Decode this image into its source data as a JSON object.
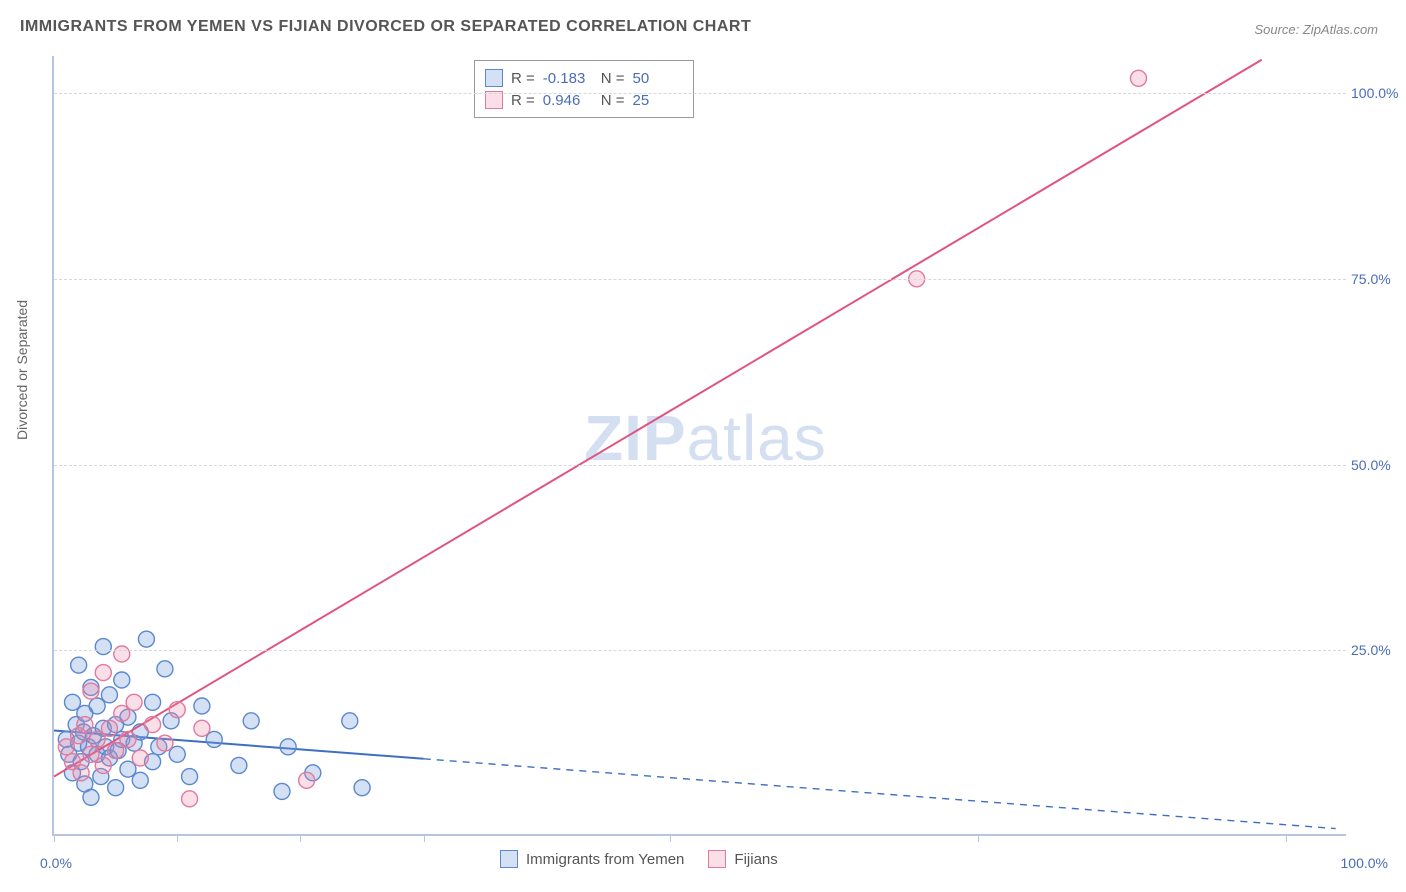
{
  "title": "IMMIGRANTS FROM YEMEN VS FIJIAN DIVORCED OR SEPARATED CORRELATION CHART",
  "source": "Source: ZipAtlas.com",
  "ylabel": "Divorced or Separated",
  "watermark": {
    "bold": "ZIP",
    "light": "atlas"
  },
  "chart": {
    "type": "scatter",
    "xlim": [
      0,
      105
    ],
    "ylim": [
      0,
      105
    ],
    "yticks": [
      25,
      50,
      75,
      100
    ],
    "ytick_labels": [
      "25.0%",
      "50.0%",
      "75.0%",
      "100.0%"
    ],
    "xticks": [
      0,
      10,
      20,
      30,
      50,
      75,
      100
    ],
    "x_axis_labels": {
      "left": "0.0%",
      "right": "100.0%"
    },
    "grid_color": "#d8d8d8",
    "axis_color": "#b8c4e0",
    "background_color": "#ffffff",
    "marker_radius": 8,
    "marker_stroke_width": 1.4,
    "series": [
      {
        "name": "Immigrants from Yemen",
        "fill": "rgba(122,160,220,0.32)",
        "stroke": "#5b88cf",
        "R": "-0.183",
        "N": "50",
        "trend": {
          "x1": 0,
          "y1": 14.2,
          "x2": 104,
          "y2": 1.0,
          "solid_until_x": 30,
          "color": "#3e6fc0",
          "width": 2
        },
        "points": [
          [
            1.0,
            13.0
          ],
          [
            1.2,
            11.0
          ],
          [
            1.5,
            18.0
          ],
          [
            1.5,
            8.5
          ],
          [
            1.8,
            15.0
          ],
          [
            2.0,
            12.5
          ],
          [
            2.0,
            23.0
          ],
          [
            2.2,
            10.0
          ],
          [
            2.4,
            14.0
          ],
          [
            2.5,
            7.0
          ],
          [
            2.5,
            16.5
          ],
          [
            2.8,
            12.0
          ],
          [
            3.0,
            20.0
          ],
          [
            3.0,
            5.2
          ],
          [
            3.2,
            13.5
          ],
          [
            3.5,
            11.0
          ],
          [
            3.5,
            17.5
          ],
          [
            3.8,
            8.0
          ],
          [
            4.0,
            14.5
          ],
          [
            4.0,
            25.5
          ],
          [
            4.2,
            12.0
          ],
          [
            4.5,
            10.5
          ],
          [
            4.5,
            19.0
          ],
          [
            5.0,
            6.5
          ],
          [
            5.0,
            15.0
          ],
          [
            5.2,
            11.5
          ],
          [
            5.5,
            13.0
          ],
          [
            5.5,
            21.0
          ],
          [
            6.0,
            9.0
          ],
          [
            6.0,
            16.0
          ],
          [
            6.5,
            12.5
          ],
          [
            7.0,
            7.5
          ],
          [
            7.0,
            14.0
          ],
          [
            7.5,
            26.5
          ],
          [
            8.0,
            10.0
          ],
          [
            8.0,
            18.0
          ],
          [
            8.5,
            12.0
          ],
          [
            9.0,
            22.5
          ],
          [
            9.5,
            15.5
          ],
          [
            10.0,
            11.0
          ],
          [
            11.0,
            8.0
          ],
          [
            12.0,
            17.5
          ],
          [
            13.0,
            13.0
          ],
          [
            15.0,
            9.5
          ],
          [
            16.0,
            15.5
          ],
          [
            18.5,
            6.0
          ],
          [
            19.0,
            12.0
          ],
          [
            21.0,
            8.5
          ],
          [
            24.0,
            15.5
          ],
          [
            25.0,
            6.5
          ]
        ]
      },
      {
        "name": "Fijians",
        "fill": "rgba(238,140,170,0.28)",
        "stroke": "#e17aa0",
        "R": "0.946",
        "N": "25",
        "trend": {
          "x1": 0,
          "y1": 8.0,
          "x2": 98,
          "y2": 104.5,
          "color": "#e0547f",
          "width": 2
        },
        "points": [
          [
            1.0,
            12.0
          ],
          [
            1.5,
            10.0
          ],
          [
            2.0,
            13.5
          ],
          [
            2.2,
            8.5
          ],
          [
            2.5,
            15.0
          ],
          [
            3.0,
            11.0
          ],
          [
            3.0,
            19.5
          ],
          [
            3.5,
            13.0
          ],
          [
            4.0,
            9.5
          ],
          [
            4.0,
            22.0
          ],
          [
            4.5,
            14.5
          ],
          [
            5.0,
            11.5
          ],
          [
            5.5,
            16.5
          ],
          [
            5.5,
            24.5
          ],
          [
            6.0,
            13.0
          ],
          [
            6.5,
            18.0
          ],
          [
            7.0,
            10.5
          ],
          [
            8.0,
            15.0
          ],
          [
            9.0,
            12.5
          ],
          [
            10.0,
            17.0
          ],
          [
            11.0,
            5.0
          ],
          [
            12.0,
            14.5
          ],
          [
            20.5,
            7.5
          ],
          [
            70.0,
            75.0
          ],
          [
            88.0,
            102.0
          ]
        ]
      }
    ]
  },
  "legend_top": {
    "R_label": "R =",
    "N_label": "N ="
  },
  "legend_bottom": {
    "items": [
      {
        "label": "Immigrants from Yemen",
        "fill": "rgba(122,160,220,0.32)",
        "stroke": "#5b88cf"
      },
      {
        "label": "Fijians",
        "fill": "rgba(238,140,170,0.28)",
        "stroke": "#e17aa0"
      }
    ]
  }
}
